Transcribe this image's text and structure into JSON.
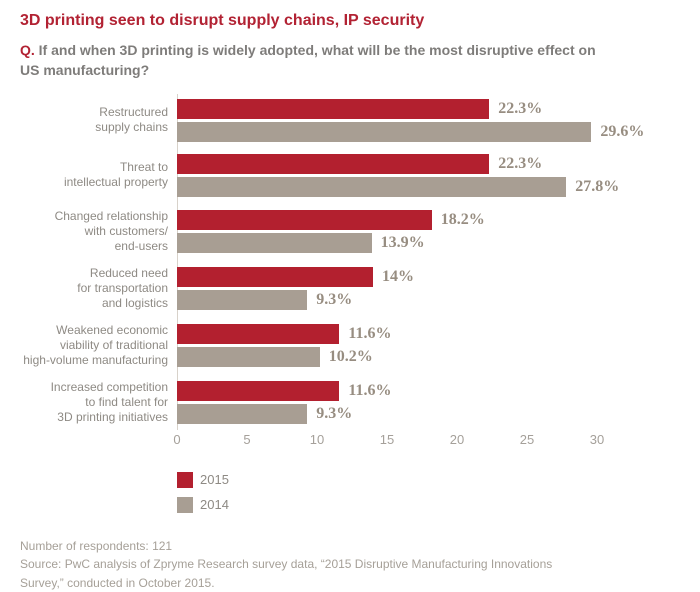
{
  "header": {
    "title": "3D printing seen to disrupt supply chains, IP security",
    "question_prefix": "Q.",
    "question": "If and when 3D printing is widely adopted, what will be the most disruptive effect on US manufacturing?"
  },
  "chart_data": {
    "type": "bar",
    "orientation": "horizontal",
    "title": "3D printing seen to disrupt supply chains, IP security",
    "categories": [
      "Restructured\nsupply chains",
      "Threat to\nintellectual property",
      "Changed relationship\nwith customers/\nend-users",
      "Reduced need\nfor transportation\nand logistics",
      "Weakened economic\nviability of traditional\nhigh-volume manufacturing",
      "Increased competition\nto find talent for\n3D printing initiatives"
    ],
    "series": [
      {
        "name": "2015",
        "color": "#B3202F",
        "values": [
          22.3,
          22.3,
          18.2,
          14,
          11.6,
          11.6
        ],
        "labels": [
          "22.3%",
          "22.3%",
          "18.2%",
          "14%",
          "11.6%",
          "11.6%"
        ]
      },
      {
        "name": "2014",
        "color": "#A89E93",
        "values": [
          29.6,
          27.8,
          13.9,
          9.3,
          10.2,
          9.3
        ],
        "labels": [
          "29.6%",
          "27.8%",
          "13.9%",
          "9.3%",
          "10.2%",
          "9.3%"
        ]
      }
    ],
    "x_ticks": [
      0,
      5,
      10,
      15,
      20,
      25,
      30
    ],
    "xlim": [
      0,
      30
    ],
    "grid": false,
    "legend_position": "bottom-left",
    "value_label_color": "#978D81",
    "axis_tick_color": "#A5A09A"
  },
  "footer": {
    "respondents": "Number of respondents: 121",
    "source": "Source: PwC analysis of Zpryme Research survey data, “2015 Disruptive Manufacturing Innovations\nSurvey,” conducted in October 2015."
  }
}
